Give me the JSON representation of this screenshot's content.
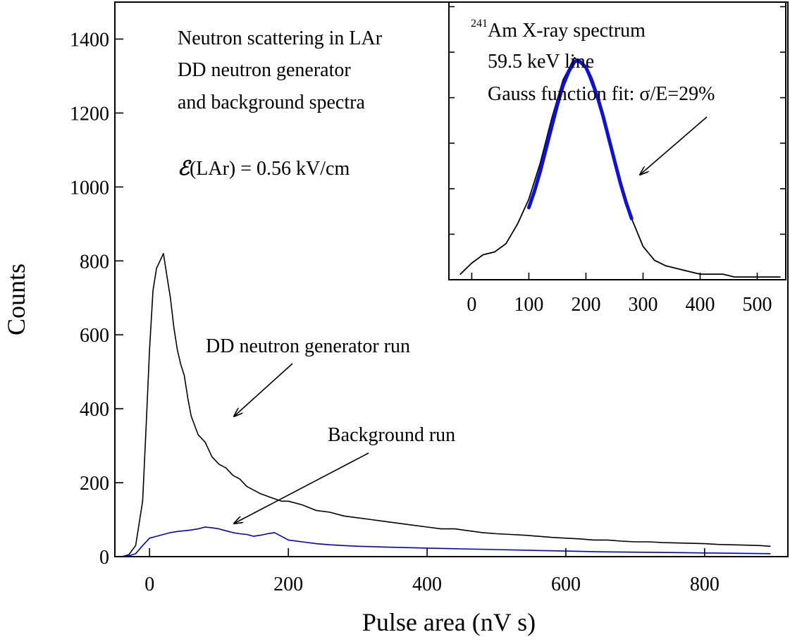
{
  "chart_data": [
    {
      "type": "line",
      "xlabel": "Pulse area (nV s)",
      "ylabel": "Counts",
      "xlim": [
        -50,
        920
      ],
      "ylim": [
        0,
        1500
      ],
      "xticks": [
        0,
        200,
        400,
        600,
        800
      ],
      "yticks": [
        0,
        200,
        400,
        600,
        800,
        1000,
        1200,
        1400
      ],
      "grid": false,
      "annotations": {
        "title_line1": "Neutron scattering in LAr",
        "title_line2": "DD neutron generator",
        "title_line3": "and background spectra",
        "field_symbol": "ℰ",
        "field_label": "(LAr) = 0.56 kV/cm",
        "neutron_run_label": "DD neutron generator run",
        "background_run_label": "Background run"
      },
      "series": [
        {
          "key": "dd_neutron_run",
          "color": "#000000",
          "x": [
            -40,
            -30,
            -20,
            -10,
            -5,
            0,
            5,
            10,
            15,
            20,
            25,
            30,
            35,
            40,
            45,
            50,
            55,
            60,
            70,
            80,
            90,
            100,
            110,
            120,
            130,
            140,
            150,
            160,
            175,
            190,
            200,
            220,
            240,
            260,
            280,
            300,
            320,
            340,
            360,
            380,
            400,
            420,
            440,
            460,
            480,
            500,
            520,
            540,
            560,
            580,
            600,
            620,
            640,
            660,
            680,
            700,
            720,
            740,
            760,
            780,
            800,
            820,
            840,
            860,
            880,
            895
          ],
          "y": [
            0,
            5,
            30,
            150,
            350,
            560,
            720,
            780,
            800,
            820,
            760,
            700,
            620,
            560,
            520,
            490,
            430,
            380,
            330,
            310,
            270,
            250,
            240,
            220,
            210,
            190,
            180,
            170,
            160,
            150,
            150,
            140,
            125,
            120,
            110,
            105,
            100,
            95,
            90,
            85,
            80,
            75,
            75,
            70,
            65,
            62,
            60,
            58,
            55,
            52,
            50,
            48,
            45,
            45,
            42,
            40,
            40,
            38,
            37,
            36,
            35,
            33,
            32,
            31,
            30,
            28
          ]
        },
        {
          "key": "background_run",
          "color": "#0000cc",
          "x": [
            -40,
            -30,
            -20,
            -10,
            0,
            10,
            20,
            30,
            40,
            50,
            60,
            70,
            80,
            90,
            100,
            110,
            120,
            130,
            140,
            150,
            160,
            170,
            180,
            190,
            200,
            220,
            240,
            260,
            280,
            300,
            320,
            340,
            360,
            380,
            400,
            450,
            500,
            550,
            600,
            650,
            700,
            750,
            800,
            850,
            895
          ],
          "y": [
            0,
            2,
            8,
            30,
            50,
            55,
            60,
            65,
            68,
            70,
            72,
            75,
            80,
            78,
            75,
            70,
            65,
            62,
            60,
            55,
            58,
            62,
            65,
            55,
            45,
            40,
            35,
            32,
            30,
            28,
            27,
            26,
            25,
            24,
            23,
            21,
            19,
            17,
            15,
            13,
            12,
            11,
            10,
            9,
            8
          ]
        }
      ]
    },
    {
      "type": "line",
      "xlim": [
        -40,
        550
      ],
      "ylim": [
        0,
        1.0
      ],
      "xticks": [
        0,
        100,
        200,
        300,
        400,
        500
      ],
      "grid": false,
      "annotations": {
        "superscript": "241",
        "title_line1": "Am X-ray spectrum",
        "title_line2": "59.5 keV line",
        "title_line3": "Gauss function fit: σ/E=29%"
      },
      "series": [
        {
          "key": "am_spectrum",
          "color": "#000000",
          "x": [
            -20,
            0,
            20,
            40,
            60,
            80,
            100,
            120,
            140,
            160,
            180,
            200,
            220,
            240,
            260,
            280,
            300,
            320,
            340,
            360,
            380,
            400,
            420,
            440,
            460,
            480,
            500,
            520,
            540
          ],
          "y": [
            0.02,
            0.06,
            0.09,
            0.1,
            0.13,
            0.2,
            0.29,
            0.42,
            0.58,
            0.72,
            0.8,
            0.76,
            0.65,
            0.5,
            0.36,
            0.22,
            0.12,
            0.07,
            0.05,
            0.04,
            0.03,
            0.02,
            0.02,
            0.02,
            0.01,
            0.01,
            0.01,
            0.01,
            0.01
          ]
        },
        {
          "key": "gauss_fit",
          "color": "#1010dd",
          "x": [
            100,
            110,
            120,
            130,
            140,
            150,
            160,
            170,
            180,
            186,
            190,
            200,
            210,
            220,
            230,
            240,
            250,
            260,
            270,
            280
          ],
          "y": [
            0.26,
            0.32,
            0.39,
            0.47,
            0.55,
            0.63,
            0.7,
            0.75,
            0.785,
            0.79,
            0.785,
            0.765,
            0.72,
            0.66,
            0.59,
            0.51,
            0.43,
            0.35,
            0.28,
            0.22
          ]
        }
      ]
    }
  ]
}
